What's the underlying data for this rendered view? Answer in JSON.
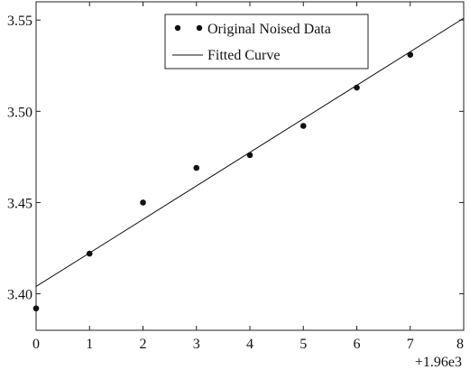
{
  "chart_data": {
    "type": "scatter",
    "title": "",
    "xlabel": "",
    "ylabel": "",
    "xlim": [
      0,
      8
    ],
    "ylim": [
      3.38,
      3.56
    ],
    "x_ticks": [
      0,
      1,
      2,
      3,
      4,
      5,
      6,
      7,
      8
    ],
    "x_tick_labels": [
      "0",
      "1",
      "2",
      "3",
      "4",
      "5",
      "6",
      "7",
      "8"
    ],
    "y_ticks": [
      3.4,
      3.45,
      3.5,
      3.55
    ],
    "y_tick_labels": [
      "3.40",
      "3.45",
      "3.50",
      "3.55"
    ],
    "x_offset_label": "+1.96e3",
    "grid": false,
    "legend_position": "top-right",
    "series": [
      {
        "name": "Original Noised Data",
        "type": "scatter",
        "color": "#111111",
        "x": [
          0,
          1,
          2,
          3,
          4,
          5,
          6,
          7
        ],
        "y": [
          3.392,
          3.422,
          3.45,
          3.469,
          3.476,
          3.492,
          3.513,
          3.531
        ]
      },
      {
        "name": "Fitted Curve",
        "type": "line",
        "color": "#111111",
        "x": [
          0,
          8
        ],
        "y": [
          3.404,
          3.551
        ]
      }
    ]
  }
}
